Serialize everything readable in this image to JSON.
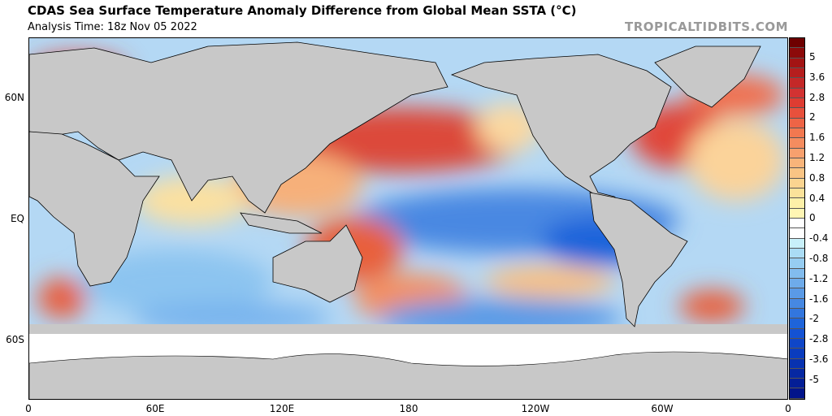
{
  "header": {
    "title": "CDAS Sea Surface Temperature Anomaly Difference from Global Mean SSTA (°C)",
    "subtitle": "Analysis Time: 18z Nov 05 2022",
    "brand": "TROPICALTIDBITS.COM"
  },
  "axes": {
    "x_labels": [
      "0",
      "60E",
      "120E",
      "180",
      "120W",
      "60W",
      "0"
    ],
    "y_labels": [
      "60N",
      "EQ",
      "60S"
    ]
  },
  "colorbar": {
    "labels": [
      "5",
      "3.6",
      "2.8",
      "2",
      "1.6",
      "1.2",
      "0.8",
      "0.4",
      "0",
      "-0.4",
      "-0.8",
      "-1.2",
      "-1.6",
      "-2",
      "-2.8",
      "-3.6",
      "-5"
    ],
    "colors": [
      "#6e0000",
      "#8c0a0a",
      "#a31414",
      "#b51e1e",
      "#c42828",
      "#d23232",
      "#de3c32",
      "#e8503c",
      "#ee6446",
      "#f27850",
      "#f58c5f",
      "#f7a06e",
      "#f8b47a",
      "#f9c484",
      "#fad490",
      "#fbe29a",
      "#fdf0a8",
      "#fff6b4",
      "#ffffff",
      "#ffffff",
      "#c8f0fa",
      "#aadcf5",
      "#96cdf2",
      "#82bcee",
      "#6eabea",
      "#5a9ae6",
      "#4688e2",
      "#3276de",
      "#1e64da",
      "#1452d4",
      "#0f46c8",
      "#0a3cbe",
      "#0832b0",
      "#0628a2",
      "#041e96",
      "#02148a"
    ]
  }
}
